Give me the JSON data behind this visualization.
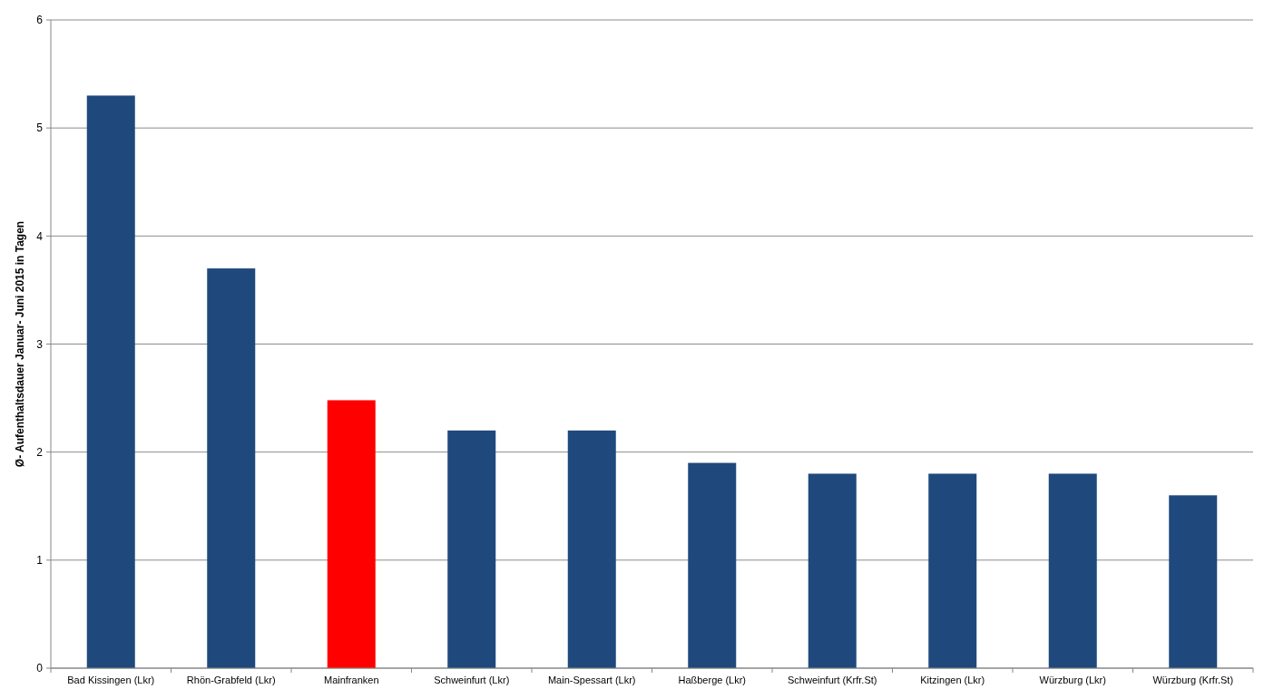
{
  "chart_data": {
    "type": "bar",
    "ylabel": "Ø- Aufenthaltsdauer Januar- Juni 2015 in Tagen",
    "categories": [
      "Bad Kissingen (Lkr)",
      "Rhön-Grabfeld (Lkr)",
      "Mainfranken",
      "Schweinfurt (Lkr)",
      "Main-Spessart (Lkr)",
      "Haßberge (Lkr)",
      "Schweinfurt (Krfr.St)",
      "Kitzingen (Lkr)",
      "Würzburg (Lkr)",
      "Würzburg (Krfr.St)"
    ],
    "values": [
      5.3,
      3.7,
      2.48,
      2.2,
      2.2,
      1.9,
      1.8,
      1.8,
      1.8,
      1.6
    ],
    "colors": [
      "#1f497d",
      "#1f497d",
      "#ff0000",
      "#1f497d",
      "#1f497d",
      "#1f497d",
      "#1f497d",
      "#1f497d",
      "#1f497d",
      "#1f497d"
    ],
    "ylim": [
      0,
      6
    ],
    "yticks": [
      0,
      1,
      2,
      3,
      4,
      5,
      6
    ],
    "grid": "y"
  }
}
